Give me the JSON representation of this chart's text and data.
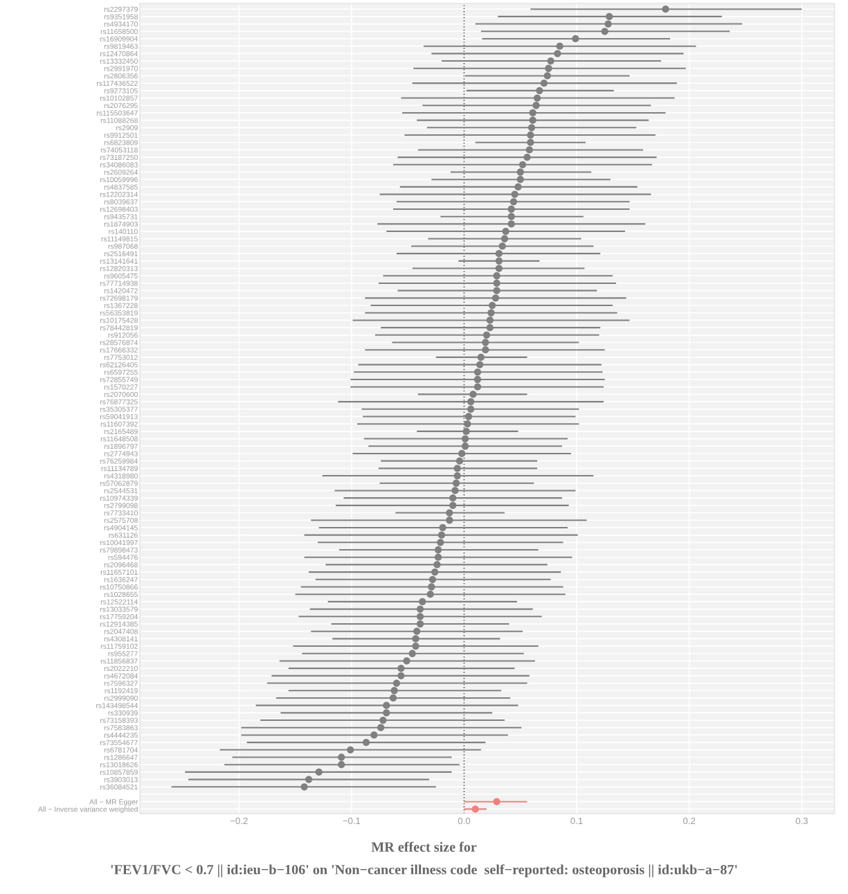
{
  "chart_data": {
    "type": "scatter",
    "orientation": "horizontal",
    "xlabel": "MR effect size for\n'FEV1/FVC < 0.7 || id:ieu−b−106' on 'Non−cancer illness code  self−reported: osteoporosis || id:ukb−a−87'",
    "categories": [
      "rs2297379",
      "rs9351958",
      "rs4934170",
      "rs11658500",
      "rs16909904",
      "rs9819463",
      "rs12470864",
      "rs13332450",
      "rs2991970",
      "rs2806356",
      "rs117436522",
      "rs9273105",
      "rs10102857",
      "rs2076295",
      "rs115503647",
      "rs11088268",
      "rs2909",
      "rs9912501",
      "rs6823809",
      "rs74053118",
      "rs73187250",
      "rs34086083",
      "rs2609264",
      "rs10059996",
      "rs4837585",
      "rs12202314",
      "rs8039637",
      "rs12698403",
      "rs9435731",
      "rs1874903",
      "rs140110",
      "rs11149815",
      "rs987068",
      "rs2516491",
      "rs13141641",
      "rs12820313",
      "rs9605475",
      "rs77714938",
      "rs1420472",
      "rs72698179",
      "rs1367228",
      "rs56353819",
      "rs10175428",
      "rs78442819",
      "rs912056",
      "rs28576874",
      "rs17666332",
      "rs7753012",
      "rs62126405",
      "rs6597255",
      "rs72855749",
      "rs1570227",
      "rs2070600",
      "rs76877325",
      "rs35305377",
      "rs59041913",
      "rs11607392",
      "rs2165489",
      "rs11648508",
      "rs1896797",
      "rs2774943",
      "rs76259984",
      "rs11134789",
      "rs4318980",
      "rs57062879",
      "rs2544531",
      "rs10974339",
      "rs2799098",
      "rs7733410",
      "rs2575708",
      "rs4904145",
      "rs631126",
      "rs10041997",
      "rs79898473",
      "rs594476",
      "rs2096468",
      "rs11657101",
      "rs1636247",
      "rs10750866",
      "rs1028655",
      "rs12522114",
      "rs13033579",
      "rs17759204",
      "rs12914385",
      "rs2047408",
      "rs4308141",
      "rs11759102",
      "rs955277",
      "rs11856837",
      "rs2022210",
      "rs4672084",
      "rs7596327",
      "rs1192419",
      "rs2999090",
      "rs143498544",
      "rs330939",
      "rs73158393",
      "rs7583863",
      "rs4444235",
      "rs73554677",
      "rs6781704",
      "rs1286647",
      "rs13018626",
      "rs10857859",
      "rs3903013",
      "rs36084521",
      null,
      "All − MR Egger",
      "All − Inverse variance weighted"
    ],
    "series": [
      {
        "color": "#808080",
        "values": [
          0.179,
          0.129,
          0.128,
          0.125,
          0.099,
          0.085,
          0.083,
          0.077,
          0.075,
          0.074,
          0.071,
          0.067,
          0.065,
          0.064,
          0.061,
          0.061,
          0.06,
          0.059,
          0.059,
          0.058,
          0.056,
          0.052,
          0.05,
          0.05,
          0.048,
          0.045,
          0.044,
          0.042,
          0.042,
          0.042,
          0.037,
          0.036,
          0.034,
          0.031,
          0.031,
          0.031,
          0.029,
          0.029,
          0.029,
          0.028,
          0.025,
          0.024,
          0.023,
          0.023,
          0.02,
          0.019,
          0.019,
          0.015,
          0.014,
          0.012,
          0.012,
          0.012,
          0.008,
          0.006,
          0.006,
          0.004,
          0.003,
          0.002,
          0.001,
          0.001,
          -0.002,
          -0.004,
          -0.006,
          -0.006,
          -0.007,
          -0.008,
          -0.01,
          -0.01,
          -0.013,
          -0.013,
          -0.019,
          -0.02,
          -0.021,
          -0.023,
          -0.023,
          -0.024,
          -0.026,
          -0.028,
          -0.029,
          -0.03,
          -0.037,
          -0.039,
          -0.039,
          -0.039,
          -0.042,
          -0.043,
          -0.043,
          -0.046,
          -0.051,
          -0.056,
          -0.056,
          -0.06,
          -0.062,
          -0.063,
          -0.069,
          -0.069,
          -0.072,
          -0.074,
          -0.08,
          -0.087,
          -0.101,
          -0.109,
          -0.109,
          -0.129,
          -0.138,
          -0.142,
          null,
          null,
          null
        ],
        "errors": [
          [
            0.059,
            0.3
          ],
          [
            0.03,
            0.229
          ],
          [
            0.01,
            0.247
          ],
          [
            0.015,
            0.236
          ],
          [
            0.016,
            0.183
          ],
          [
            -0.036,
            0.206
          ],
          [
            -0.029,
            0.195
          ],
          [
            -0.02,
            0.175
          ],
          [
            -0.045,
            0.197
          ],
          [
            0.001,
            0.147
          ],
          [
            -0.046,
            0.189
          ],
          [
            0.002,
            0.133
          ],
          [
            -0.056,
            0.187
          ],
          [
            -0.037,
            0.166
          ],
          [
            -0.055,
            0.179
          ],
          [
            -0.042,
            0.164
          ],
          [
            -0.033,
            0.153
          ],
          [
            -0.053,
            0.17
          ],
          [
            0.01,
            0.108
          ],
          [
            -0.041,
            0.159
          ],
          [
            -0.059,
            0.171
          ],
          [
            -0.063,
            0.167
          ],
          [
            -0.012,
            0.113
          ],
          [
            -0.029,
            0.13
          ],
          [
            -0.057,
            0.154
          ],
          [
            -0.075,
            0.166
          ],
          [
            -0.06,
            0.147
          ],
          [
            -0.063,
            0.147
          ],
          [
            -0.021,
            0.106
          ],
          [
            -0.077,
            0.161
          ],
          [
            -0.069,
            0.143
          ],
          [
            -0.032,
            0.104
          ],
          [
            -0.047,
            0.115
          ],
          [
            -0.06,
            0.121
          ],
          [
            -0.005,
            0.067
          ],
          [
            -0.046,
            0.107
          ],
          [
            -0.072,
            0.132
          ],
          [
            -0.076,
            0.135
          ],
          [
            -0.059,
            0.118
          ],
          [
            -0.088,
            0.144
          ],
          [
            -0.083,
            0.132
          ],
          [
            -0.088,
            0.136
          ],
          [
            -0.099,
            0.147
          ],
          [
            -0.074,
            0.121
          ],
          [
            -0.079,
            0.12
          ],
          [
            -0.064,
            0.102
          ],
          [
            -0.088,
            0.125
          ],
          [
            -0.025,
            0.056
          ],
          [
            -0.094,
            0.122
          ],
          [
            -0.098,
            0.123
          ],
          [
            -0.101,
            0.125
          ],
          [
            -0.101,
            0.124
          ],
          [
            -0.041,
            0.056
          ],
          [
            -0.112,
            0.124
          ],
          [
            -0.091,
            0.102
          ],
          [
            -0.09,
            0.099
          ],
          [
            -0.095,
            0.102
          ],
          [
            -0.042,
            0.048
          ],
          [
            -0.089,
            0.092
          ],
          [
            -0.085,
            0.087
          ],
          [
            -0.099,
            0.095
          ],
          [
            -0.074,
            0.065
          ],
          [
            -0.076,
            0.065
          ],
          [
            -0.126,
            0.115
          ],
          [
            -0.075,
            0.062
          ],
          [
            -0.115,
            0.099
          ],
          [
            -0.107,
            0.087
          ],
          [
            -0.114,
            0.093
          ],
          [
            -0.061,
            0.036
          ],
          [
            -0.136,
            0.109
          ],
          [
            -0.129,
            0.092
          ],
          [
            -0.142,
            0.101
          ],
          [
            -0.13,
            0.088
          ],
          [
            -0.111,
            0.066
          ],
          [
            -0.142,
            0.096
          ],
          [
            -0.123,
            0.074
          ],
          [
            -0.138,
            0.086
          ],
          [
            -0.132,
            0.077
          ],
          [
            -0.145,
            0.088
          ],
          [
            -0.15,
            0.09
          ],
          [
            -0.121,
            0.047
          ],
          [
            -0.137,
            0.061
          ],
          [
            -0.147,
            0.069
          ],
          [
            -0.118,
            0.04
          ],
          [
            -0.136,
            0.052
          ],
          [
            -0.117,
            0.032
          ],
          [
            -0.152,
            0.066
          ],
          [
            -0.144,
            0.053
          ],
          [
            -0.164,
            0.063
          ],
          [
            -0.156,
            0.045
          ],
          [
            -0.171,
            0.058
          ],
          [
            -0.175,
            0.056
          ],
          [
            -0.156,
            0.033
          ],
          [
            -0.167,
            0.041
          ],
          [
            -0.185,
            0.048
          ],
          [
            -0.163,
            0.025
          ],
          [
            -0.181,
            0.036
          ],
          [
            -0.198,
            0.051
          ],
          [
            -0.198,
            0.039
          ],
          [
            -0.193,
            0.019
          ],
          [
            -0.217,
            0.015
          ],
          [
            -0.206,
            -0.011
          ],
          [
            -0.213,
            -0.004
          ],
          [
            -0.248,
            -0.011
          ],
          [
            -0.245,
            -0.031
          ],
          [
            -0.26,
            -0.025
          ],
          null,
          null,
          null
        ]
      },
      {
        "color": "#f08080",
        "values": [
          null,
          null,
          null,
          null,
          null,
          null,
          null,
          null,
          null,
          null,
          null,
          null,
          null,
          null,
          null,
          null,
          null,
          null,
          null,
          null,
          null,
          null,
          null,
          null,
          null,
          null,
          null,
          null,
          null,
          null,
          null,
          null,
          null,
          null,
          null,
          null,
          null,
          null,
          null,
          null,
          null,
          null,
          null,
          null,
          null,
          null,
          null,
          null,
          null,
          null,
          null,
          null,
          null,
          null,
          null,
          null,
          null,
          null,
          null,
          null,
          null,
          null,
          null,
          null,
          null,
          null,
          null,
          null,
          null,
          null,
          null,
          null,
          null,
          null,
          null,
          null,
          null,
          null,
          null,
          null,
          null,
          null,
          null,
          null,
          null,
          null,
          null,
          null,
          null,
          null,
          null,
          null,
          null,
          null,
          null,
          null,
          null,
          null,
          null,
          null,
          null,
          null,
          null,
          null,
          null,
          null,
          null,
          0.029,
          0.01
        ],
        "errors": [
          null,
          null,
          null,
          null,
          null,
          null,
          null,
          null,
          null,
          null,
          null,
          null,
          null,
          null,
          null,
          null,
          null,
          null,
          null,
          null,
          null,
          null,
          null,
          null,
          null,
          null,
          null,
          null,
          null,
          null,
          null,
          null,
          null,
          null,
          null,
          null,
          null,
          null,
          null,
          null,
          null,
          null,
          null,
          null,
          null,
          null,
          null,
          null,
          null,
          null,
          null,
          null,
          null,
          null,
          null,
          null,
          null,
          null,
          null,
          null,
          null,
          null,
          null,
          null,
          null,
          null,
          null,
          null,
          null,
          null,
          null,
          null,
          null,
          null,
          null,
          null,
          null,
          null,
          null,
          null,
          null,
          null,
          null,
          null,
          null,
          null,
          null,
          null,
          null,
          null,
          null,
          null,
          null,
          null,
          null,
          null,
          null,
          null,
          null,
          null,
          null,
          null,
          null,
          null,
          null,
          null,
          null,
          [
            0.0,
            0.056
          ],
          [
            0.0,
            0.02
          ]
        ]
      }
    ],
    "xlim": [
      -0.288,
      0.329
    ],
    "xticks": [
      {
        "value": -0.2,
        "label": "−0.2"
      },
      {
        "value": -0.1,
        "label": "−0.1"
      },
      {
        "value": 0,
        "label": "0.0"
      },
      0.1,
      0.2,
      0.3
    ],
    "ref_lines": [
      {
        "axis": "x",
        "value": 0,
        "color": "#555555",
        "line_style": "dotted"
      }
    ],
    "grid": true,
    "marker": "circle"
  }
}
